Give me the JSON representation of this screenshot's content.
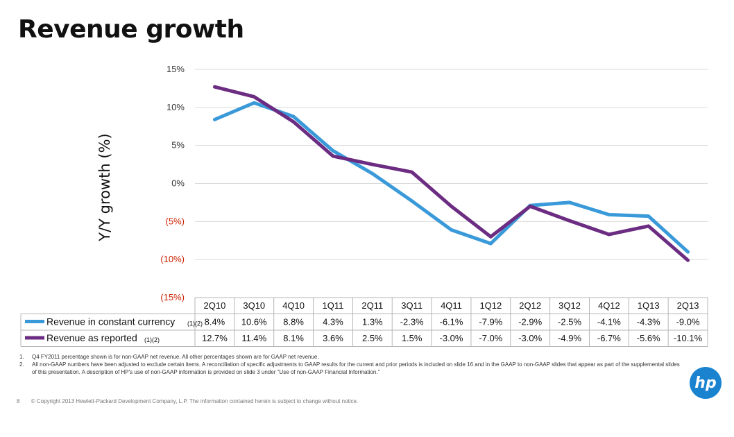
{
  "page": {
    "title": "Revenue growth",
    "page_number": "8",
    "copyright": "© Copyright 2013 Hewlett-Packard Development Company, L.P.  The information contained herein is subject to change without notice.",
    "logo_text": "hp",
    "footnotes": [
      {
        "num": "1.",
        "text": "Q4 FY2011 percentage shown is for non-GAAP net revenue.  All other percentages shown are for GAAP net revenue."
      },
      {
        "num": "2.",
        "text": "All non-GAAP numbers have been adjusted to exclude certain items. A reconciliation of specific adjustments to GAAP results for the current and prior periods is included on slide 16 and in the GAAP to non-GAAP slides that appear as part of the supplemental slides of this presentation. A description of HP's use of non-GAAP information is provided on slide 3 under \"Use of non-GAAP Financial Information.\""
      }
    ]
  },
  "chart_data": {
    "type": "line",
    "ylabel": "Y/Y  growth (%)",
    "xlabel": "",
    "ylim": [
      -15,
      15
    ],
    "ytick_values": [
      15,
      10,
      5,
      0,
      -5,
      -10,
      -15
    ],
    "ytick_labels": [
      "15%",
      "10%",
      "5%",
      "0%",
      "(5%)",
      "(10%)",
      "(15%)"
    ],
    "grid": true,
    "legend_placement": "table-left",
    "categories": [
      "2Q10",
      "3Q10",
      "4Q10",
      "1Q11",
      "2Q11",
      "3Q11",
      "4Q11",
      "1Q12",
      "2Q12",
      "3Q12",
      "4Q12",
      "1Q13",
      "2Q13"
    ],
    "series": [
      {
        "name": "Revenue in constant currency",
        "note": "(1)(2)",
        "color": "#3a9ad9",
        "values": [
          8.4,
          10.6,
          8.8,
          4.3,
          1.3,
          -2.3,
          -6.1,
          -7.9,
          -2.9,
          -2.5,
          -4.1,
          -4.3,
          -9.0
        ],
        "labels": [
          "8.4%",
          "10.6%",
          "8.8%",
          "4.3%",
          "1.3%",
          "-2.3%",
          "-6.1%",
          "-7.9%",
          "-2.9%",
          "-2.5%",
          "-4.1%",
          "-4.3%",
          "-9.0%"
        ]
      },
      {
        "name": "Revenue as reported",
        "note": "(1)(2)",
        "color": "#6b2c82",
        "values": [
          12.7,
          11.4,
          8.1,
          3.6,
          2.5,
          1.5,
          -3.0,
          -7.0,
          -3.0,
          -4.9,
          -6.7,
          -5.6,
          -10.1
        ],
        "labels": [
          "12.7%",
          "11.4%",
          "8.1%",
          "3.6%",
          "2.5%",
          "1.5%",
          "-3.0%",
          "-7.0%",
          "-3.0%",
          "-4.9%",
          "-6.7%",
          "-5.6%",
          "-10.1%"
        ]
      }
    ]
  }
}
